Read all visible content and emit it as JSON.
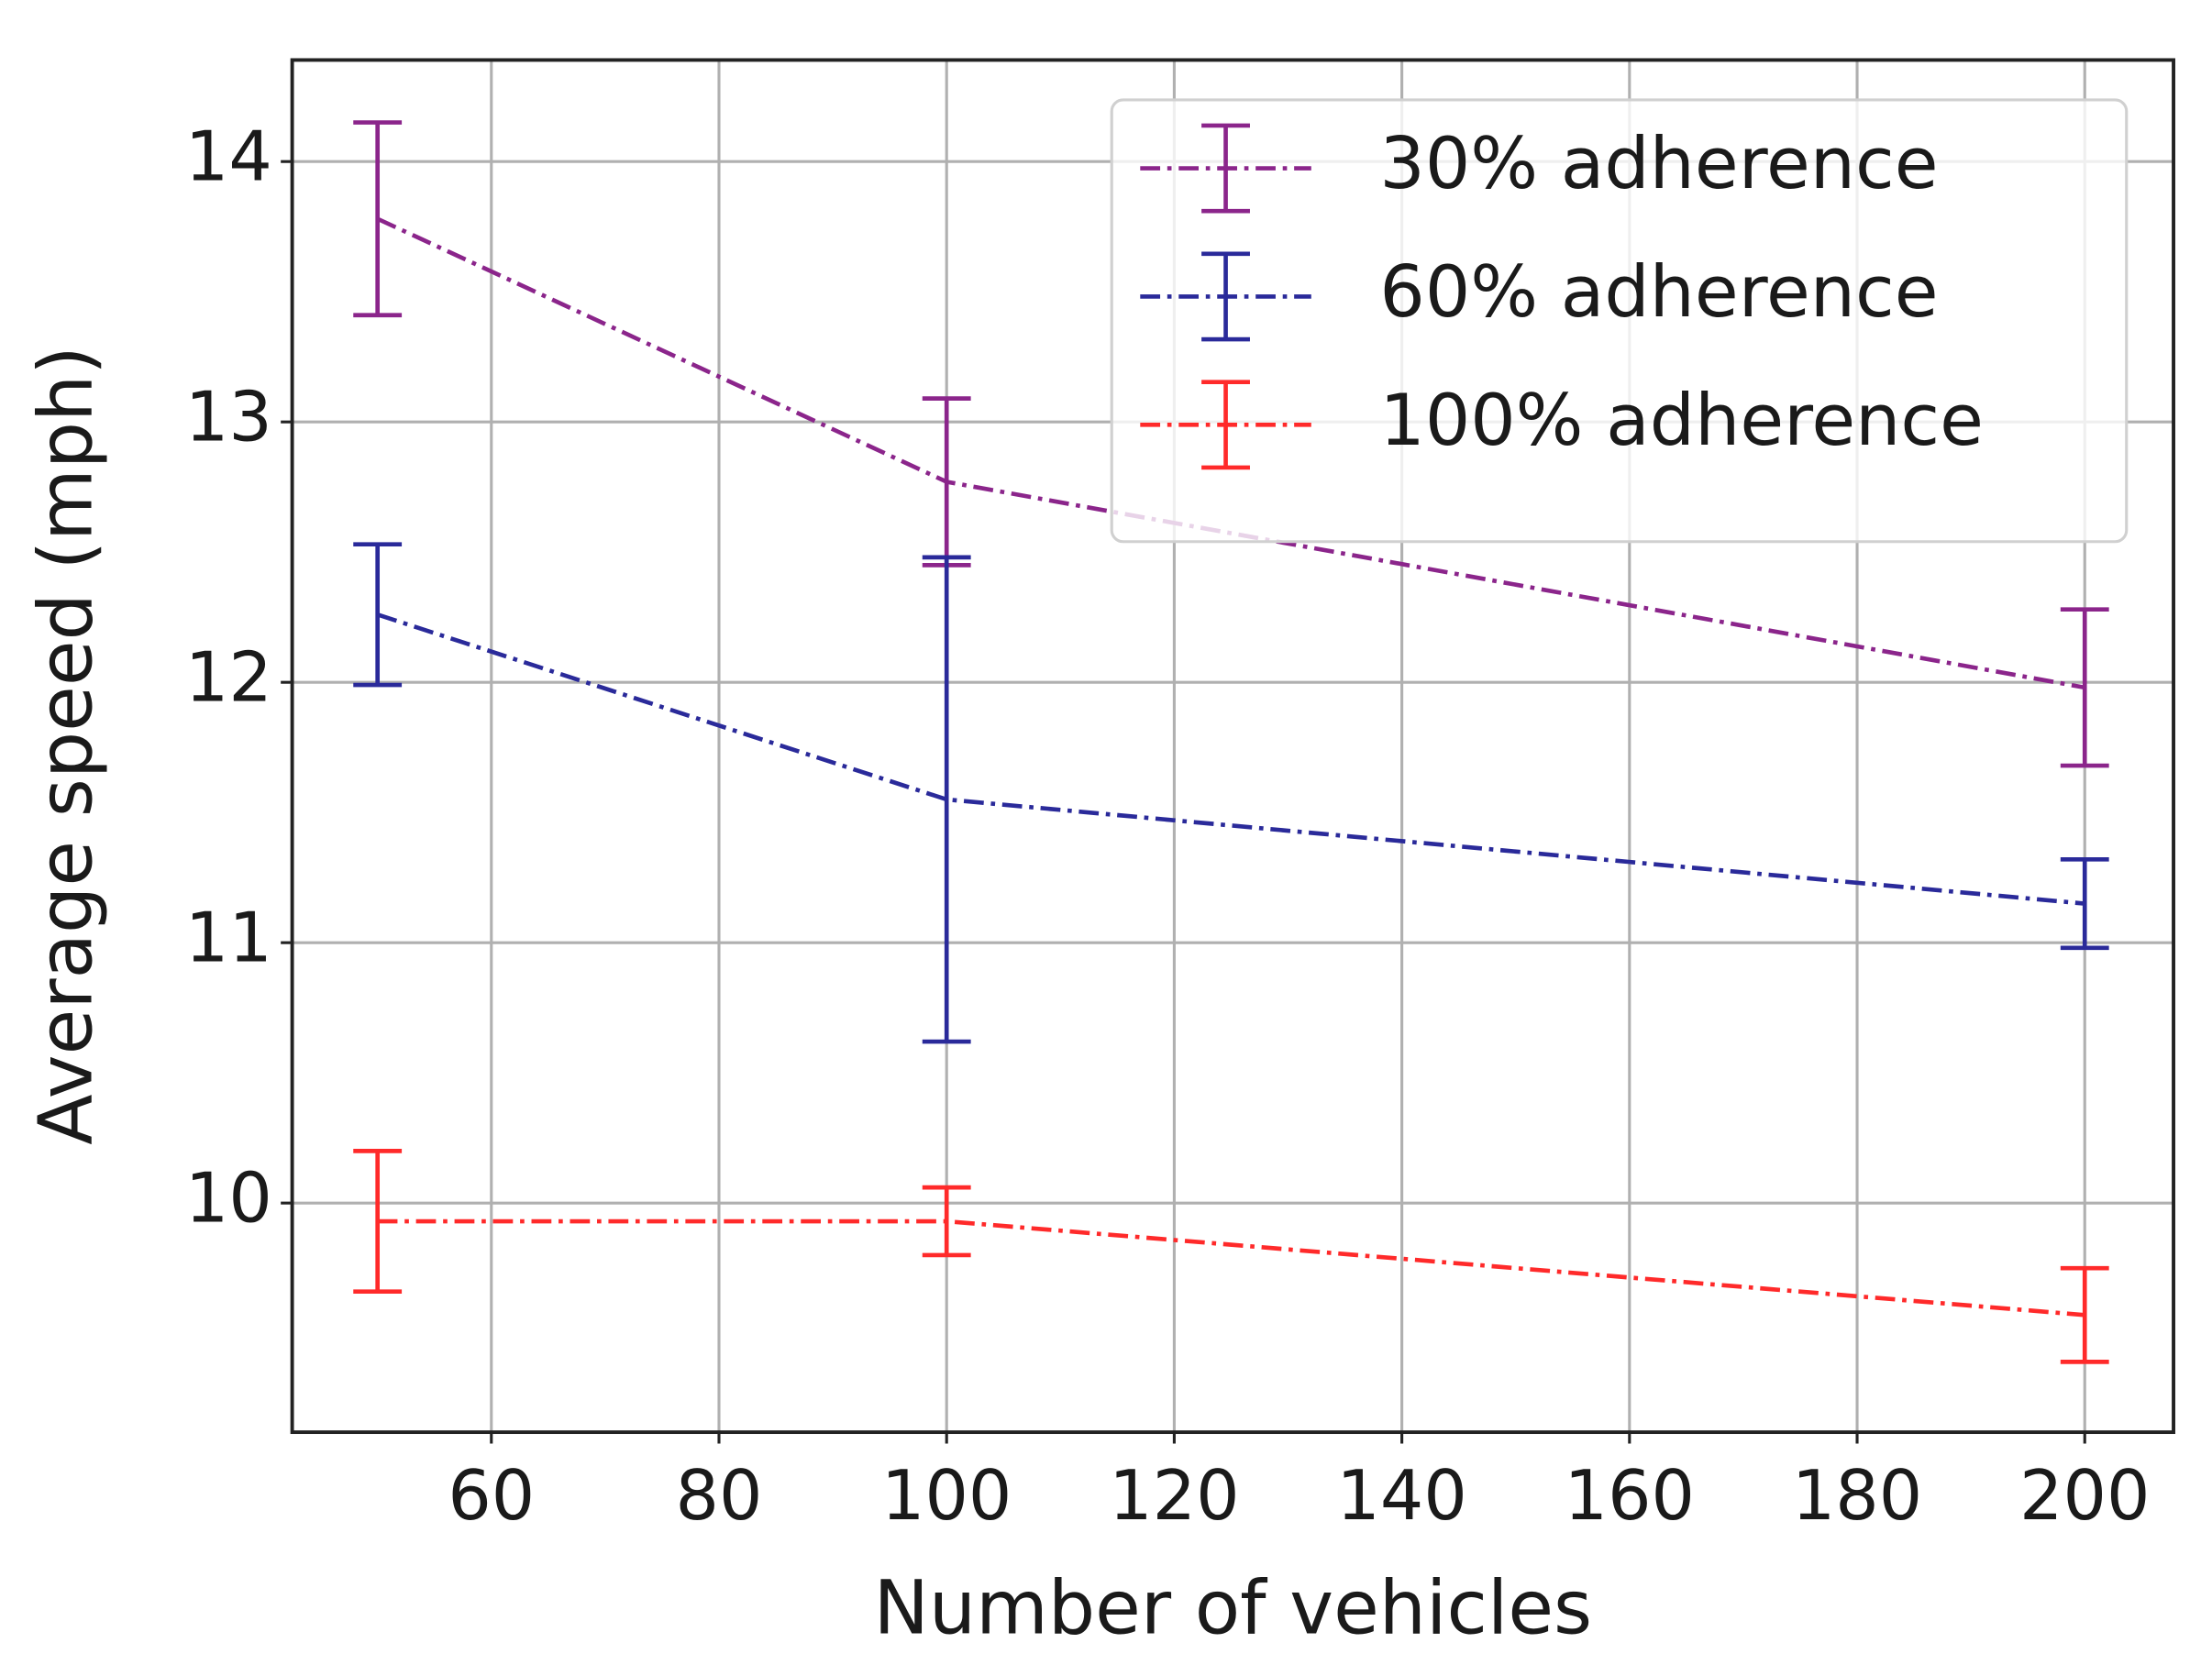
{
  "chart_data": {
    "type": "line",
    "x_label": "Number of vehicles",
    "y_label": "Average speed (mph)",
    "x": [
      50,
      100,
      200
    ],
    "series": [
      {
        "name": "30% adherence",
        "color": "#8b258b",
        "values": [
          13.78,
          12.77,
          11.98
        ],
        "errors": [
          0.37,
          0.32,
          0.3
        ]
      },
      {
        "name": "60% adherence",
        "color": "#2a2a9a",
        "values": [
          12.26,
          11.55,
          11.15
        ],
        "errors": [
          0.27,
          0.93,
          0.17
        ]
      },
      {
        "name": "100% adherence",
        "color": "#ff2a2a",
        "values": [
          9.93,
          9.93,
          9.57
        ],
        "errors": [
          0.27,
          0.13,
          0.18
        ]
      }
    ],
    "xlim": [
      42.5,
      207.8
    ],
    "ylim": [
      9.12,
      14.39
    ],
    "xticks": [
      60,
      80,
      100,
      120,
      140,
      160,
      180,
      200
    ],
    "yticks": [
      10,
      11,
      12,
      13,
      14
    ],
    "grid": true,
    "legend": "upper right",
    "linestyle": "dashdot"
  }
}
